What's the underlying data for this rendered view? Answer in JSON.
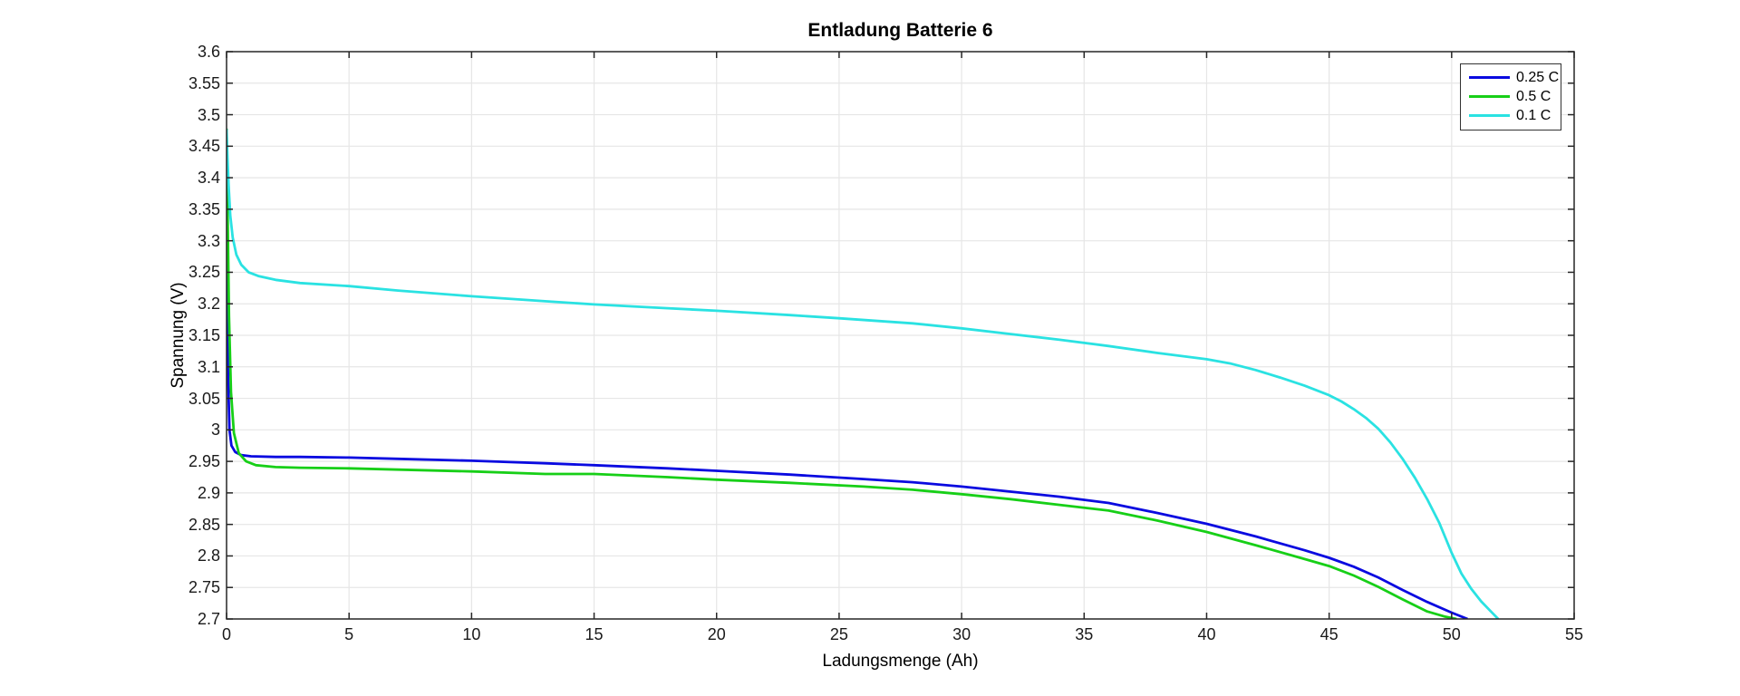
{
  "chart_data": {
    "type": "line",
    "title": "Entladung Batterie 6",
    "xlabel": "Ladungsmenge (Ah)",
    "ylabel": "Spannung (V)",
    "xlim": [
      0,
      55
    ],
    "ylim": [
      2.7,
      3.6
    ],
    "xticks": [
      0,
      5,
      10,
      15,
      20,
      25,
      30,
      35,
      40,
      45,
      50,
      55
    ],
    "xtick_labels": [
      "0",
      "5",
      "10",
      "15",
      "20",
      "25",
      "30",
      "35",
      "40",
      "45",
      "50",
      "55"
    ],
    "yticks": [
      2.7,
      2.75,
      2.8,
      2.85,
      2.9,
      2.95,
      3.0,
      3.05,
      3.1,
      3.15,
      3.2,
      3.25,
      3.3,
      3.35,
      3.4,
      3.45,
      3.5,
      3.55,
      3.6
    ],
    "ytick_labels": [
      "2.7",
      "2.75",
      "2.8",
      "2.85",
      "2.9",
      "2.95",
      "3",
      "3.05",
      "3.1",
      "3.15",
      "3.2",
      "3.25",
      "3.3",
      "3.35",
      "3.4",
      "3.45",
      "3.5",
      "3.55",
      "3.6"
    ],
    "grid": true,
    "legend_position": "northeast",
    "colors": {
      "grid": "#e6e6e6",
      "axis": "#262626",
      "background": "#ffffff"
    },
    "series": [
      {
        "name": "0.25 C",
        "color": "#0a0ae0",
        "points": [
          [
            0,
            3.477
          ],
          [
            0.03,
            3.25
          ],
          [
            0.06,
            3.09
          ],
          [
            0.12,
            3.0
          ],
          [
            0.2,
            2.975
          ],
          [
            0.35,
            2.965
          ],
          [
            0.6,
            2.96
          ],
          [
            1,
            2.958
          ],
          [
            2,
            2.957
          ],
          [
            3,
            2.957
          ],
          [
            5,
            2.956
          ],
          [
            7,
            2.954
          ],
          [
            10,
            2.951
          ],
          [
            13,
            2.947
          ],
          [
            15,
            2.944
          ],
          [
            18,
            2.939
          ],
          [
            20,
            2.935
          ],
          [
            23,
            2.929
          ],
          [
            26,
            2.922
          ],
          [
            28,
            2.917
          ],
          [
            30,
            2.91
          ],
          [
            32,
            2.902
          ],
          [
            34,
            2.894
          ],
          [
            36,
            2.884
          ],
          [
            38,
            2.868
          ],
          [
            40,
            2.851
          ],
          [
            42,
            2.831
          ],
          [
            44,
            2.809
          ],
          [
            45,
            2.797
          ],
          [
            46,
            2.783
          ],
          [
            47,
            2.766
          ],
          [
            48,
            2.746
          ],
          [
            49,
            2.727
          ],
          [
            50,
            2.71
          ],
          [
            50.65,
            2.7
          ]
        ]
      },
      {
        "name": "0.5 C",
        "color": "#17cf17",
        "points": [
          [
            0,
            3.478
          ],
          [
            0.05,
            3.32
          ],
          [
            0.1,
            3.18
          ],
          [
            0.18,
            3.06
          ],
          [
            0.3,
            2.995
          ],
          [
            0.5,
            2.963
          ],
          [
            0.8,
            2.95
          ],
          [
            1.2,
            2.944
          ],
          [
            2,
            2.941
          ],
          [
            3,
            2.94
          ],
          [
            5,
            2.939
          ],
          [
            7,
            2.937
          ],
          [
            10,
            2.934
          ],
          [
            13,
            2.93
          ],
          [
            15,
            2.93
          ],
          [
            18,
            2.925
          ],
          [
            20,
            2.921
          ],
          [
            23,
            2.916
          ],
          [
            26,
            2.91
          ],
          [
            28,
            2.905
          ],
          [
            30,
            2.898
          ],
          [
            32,
            2.89
          ],
          [
            34,
            2.881
          ],
          [
            36,
            2.872
          ],
          [
            38,
            2.856
          ],
          [
            40,
            2.838
          ],
          [
            42,
            2.817
          ],
          [
            44,
            2.795
          ],
          [
            45,
            2.784
          ],
          [
            46,
            2.769
          ],
          [
            47,
            2.751
          ],
          [
            48,
            2.731
          ],
          [
            49,
            2.712
          ],
          [
            49.7,
            2.704
          ],
          [
            50.2,
            2.7
          ]
        ]
      },
      {
        "name": "0.1 C",
        "color": "#2ae2e2",
        "points": [
          [
            0,
            3.477
          ],
          [
            0.04,
            3.43
          ],
          [
            0.08,
            3.39
          ],
          [
            0.15,
            3.34
          ],
          [
            0.25,
            3.305
          ],
          [
            0.4,
            3.278
          ],
          [
            0.6,
            3.262
          ],
          [
            0.9,
            3.25
          ],
          [
            1.3,
            3.244
          ],
          [
            2,
            3.238
          ],
          [
            3,
            3.233
          ],
          [
            5,
            3.228
          ],
          [
            7,
            3.221
          ],
          [
            10,
            3.212
          ],
          [
            13,
            3.204
          ],
          [
            15,
            3.199
          ],
          [
            18,
            3.193
          ],
          [
            20,
            3.189
          ],
          [
            23,
            3.182
          ],
          [
            25,
            3.177
          ],
          [
            28,
            3.169
          ],
          [
            30,
            3.161
          ],
          [
            32,
            3.152
          ],
          [
            34,
            3.143
          ],
          [
            36,
            3.133
          ],
          [
            38,
            3.122
          ],
          [
            40,
            3.112
          ],
          [
            41,
            3.105
          ],
          [
            42,
            3.095
          ],
          [
            43,
            3.083
          ],
          [
            44,
            3.07
          ],
          [
            45,
            3.055
          ],
          [
            45.5,
            3.045
          ],
          [
            46,
            3.033
          ],
          [
            46.5,
            3.019
          ],
          [
            47,
            3.002
          ],
          [
            47.5,
            2.98
          ],
          [
            48,
            2.954
          ],
          [
            48.5,
            2.924
          ],
          [
            49,
            2.89
          ],
          [
            49.5,
            2.852
          ],
          [
            50,
            2.805
          ],
          [
            50.4,
            2.772
          ],
          [
            50.8,
            2.748
          ],
          [
            51.2,
            2.728
          ],
          [
            51.6,
            2.712
          ],
          [
            51.9,
            2.7
          ]
        ]
      }
    ]
  }
}
